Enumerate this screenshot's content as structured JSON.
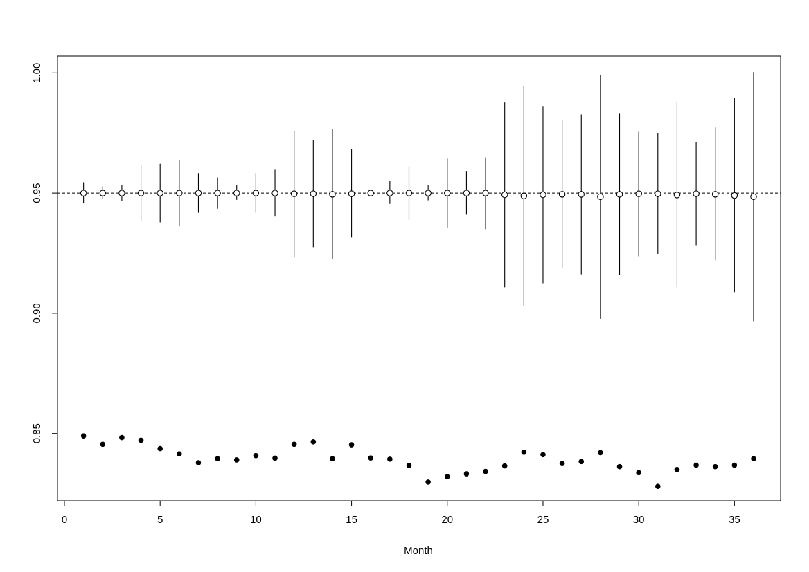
{
  "chart_data": {
    "type": "scatter",
    "title": "",
    "xlabel": "Month",
    "ylabel": "",
    "xlim": [
      0,
      37
    ],
    "ylim": [
      0.822,
      1.007
    ],
    "x_ticks": [
      0,
      5,
      10,
      15,
      20,
      25,
      30,
      35
    ],
    "y_ticks": [
      0.85,
      0.9,
      0.95,
      1.0
    ],
    "x_tick_labels": [
      "0",
      "5",
      "10",
      "15",
      "20",
      "25",
      "30",
      "35"
    ],
    "y_tick_labels": [
      "0.85",
      "0.90",
      "0.95",
      "1.00"
    ],
    "reference_line": {
      "y": 0.95,
      "style": "dashed"
    },
    "grid": false,
    "legend": "none",
    "series": [
      {
        "marker": "open-circle",
        "x": [
          1,
          2,
          3,
          4,
          5,
          6,
          7,
          8,
          9,
          10,
          11,
          12,
          13,
          14,
          15,
          16,
          17,
          18,
          19,
          20,
          21,
          22,
          23,
          24,
          25,
          26,
          27,
          28,
          29,
          30,
          31,
          32,
          33,
          34,
          35,
          36
        ],
        "y": [
          0.95,
          0.95,
          0.95,
          0.95,
          0.95,
          0.95,
          0.95,
          0.95,
          0.95,
          0.95,
          0.95,
          0.9497,
          0.9497,
          0.9495,
          0.9497,
          0.95,
          0.95,
          0.95,
          0.95,
          0.95,
          0.95,
          0.95,
          0.9493,
          0.9488,
          0.9493,
          0.9495,
          0.9495,
          0.9485,
          0.9495,
          0.9497,
          0.9497,
          0.9492,
          0.9497,
          0.9495,
          0.949,
          0.9485
        ],
        "lower": [
          0.9457,
          0.9475,
          0.9468,
          0.9385,
          0.9378,
          0.9362,
          0.9418,
          0.9435,
          0.9472,
          0.9418,
          0.9402,
          0.9232,
          0.9275,
          0.9227,
          0.9315,
          0.95,
          0.9455,
          0.9388,
          0.947,
          0.9357,
          0.941,
          0.935,
          0.9108,
          0.9032,
          0.9125,
          0.9188,
          0.9162,
          0.8977,
          0.9158,
          0.9237,
          0.9247,
          0.9108,
          0.9283,
          0.922,
          0.9088,
          0.8967
        ],
        "upper": [
          0.9545,
          0.9528,
          0.9535,
          0.9615,
          0.9622,
          0.9637,
          0.9583,
          0.9565,
          0.9532,
          0.9583,
          0.9597,
          0.976,
          0.972,
          0.9765,
          0.9683,
          0.95,
          0.9552,
          0.9612,
          0.9532,
          0.9643,
          0.9592,
          0.9648,
          0.9877,
          0.9945,
          0.9862,
          0.9803,
          0.9827,
          0.9992,
          0.983,
          0.9755,
          0.9748,
          0.9877,
          0.9713,
          0.9773,
          0.9897,
          1.0003
        ]
      },
      {
        "marker": "filled-circle",
        "x": [
          1,
          2,
          3,
          4,
          5,
          6,
          7,
          8,
          9,
          10,
          11,
          12,
          13,
          14,
          15,
          16,
          17,
          18,
          19,
          20,
          21,
          22,
          23,
          24,
          25,
          26,
          27,
          28,
          29,
          30,
          31,
          32,
          33,
          34,
          35,
          36
        ],
        "y": [
          0.849,
          0.8455,
          0.8483,
          0.8472,
          0.8437,
          0.8415,
          0.8378,
          0.8395,
          0.839,
          0.8408,
          0.8397,
          0.8455,
          0.8465,
          0.8395,
          0.8453,
          0.8398,
          0.8393,
          0.8367,
          0.8298,
          0.832,
          0.8332,
          0.8342,
          0.8365,
          0.8422,
          0.8412,
          0.8375,
          0.8383,
          0.842,
          0.8362,
          0.8337,
          0.828,
          0.835,
          0.8368,
          0.8362,
          0.8368,
          0.8395
        ]
      }
    ]
  }
}
